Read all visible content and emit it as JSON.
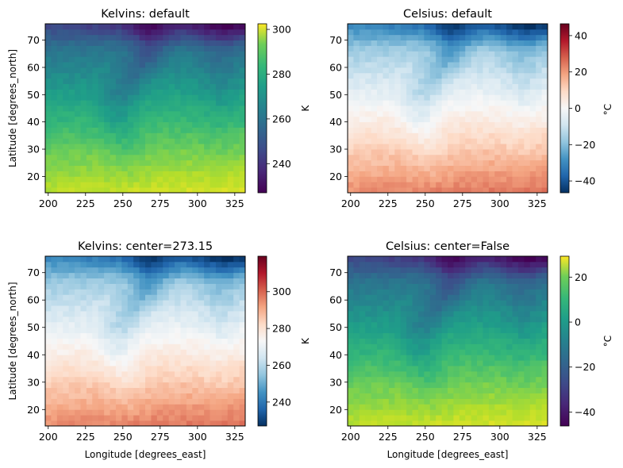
{
  "figure": {
    "x_axis_label": "Longitude [degrees_east]",
    "y_axis_label": "Latitude [degrees_north]",
    "x_ticks": [
      "200",
      "225",
      "250",
      "275",
      "300",
      "325"
    ],
    "y_ticks": [
      "20",
      "30",
      "40",
      "50",
      "60",
      "70"
    ]
  },
  "chart_data": [
    {
      "type": "heatmap",
      "title": "Kelvins: default",
      "xlabel": "",
      "ylabel": "Latitude [degrees_north]",
      "xlim": [
        198,
        332
      ],
      "ylim": [
        14,
        76
      ],
      "colormap": "viridis",
      "colorbar_label": "K",
      "colorbar_ticks": [
        "240",
        "260",
        "280",
        "300"
      ],
      "colorbar_range": [
        227,
        302.5
      ],
      "grid": false
    },
    {
      "type": "heatmap",
      "title": "Celsius: default",
      "xlabel": "",
      "ylabel": "",
      "xlim": [
        198,
        332
      ],
      "ylim": [
        14,
        76
      ],
      "colormap": "RdBu_r",
      "colorbar_label": "°C",
      "colorbar_ticks": [
        "−40",
        "−20",
        "0",
        "20",
        "40"
      ],
      "colorbar_range": [
        -46.5,
        46.5
      ],
      "grid": false
    },
    {
      "type": "heatmap",
      "title": "Kelvins: center=273.15",
      "xlabel": "Longitude [degrees_east]",
      "ylabel": "Latitude [degrees_north]",
      "xlim": [
        198,
        332
      ],
      "ylim": [
        14,
        76
      ],
      "colormap": "RdBu_r",
      "colorbar_label": "K",
      "colorbar_ticks": [
        "240",
        "260",
        "280",
        "300"
      ],
      "colorbar_range": [
        227,
        319.3
      ],
      "grid": false
    },
    {
      "type": "heatmap",
      "title": "Celsius: center=False",
      "xlabel": "Longitude [degrees_east]",
      "ylabel": "",
      "xlim": [
        198,
        332
      ],
      "ylim": [
        14,
        76
      ],
      "colormap": "viridis",
      "colorbar_label": "°C",
      "colorbar_ticks": [
        "−40",
        "−20",
        "0",
        "20"
      ],
      "colorbar_range": [
        -46.2,
        29.3
      ],
      "grid": false
    }
  ]
}
